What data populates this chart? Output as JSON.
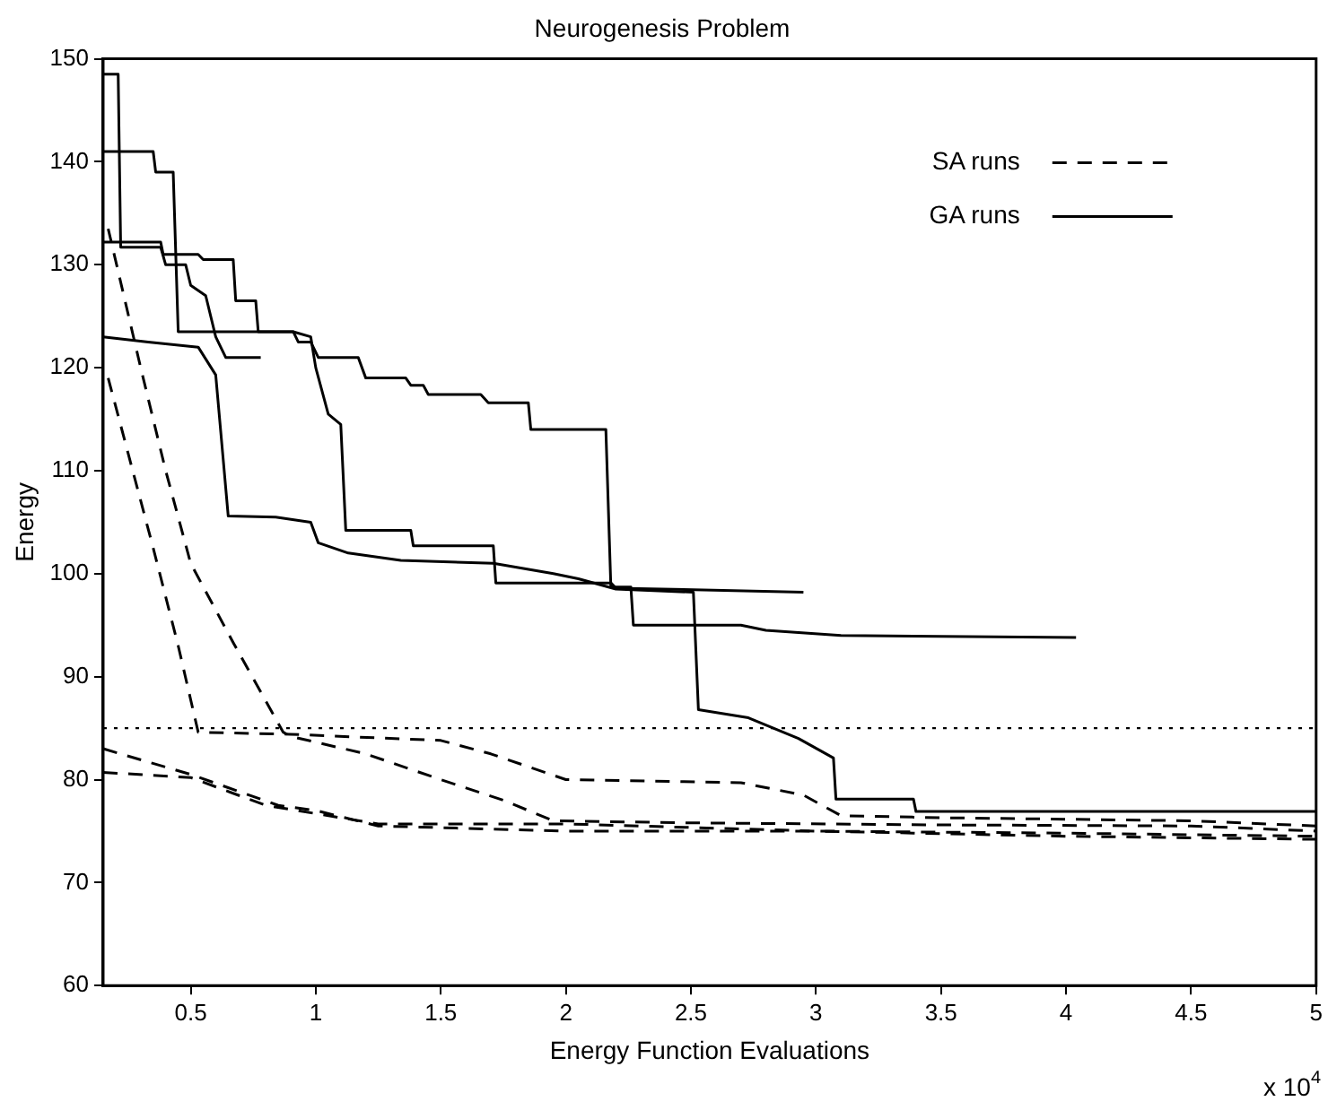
{
  "chart_data": {
    "type": "line",
    "title": "Neurogenesis Problem",
    "xlabel": "Energy Function Evaluations",
    "ylabel": "Energy",
    "xlim": [
      0.15,
      5
    ],
    "xticks": [
      0.5,
      1,
      1.5,
      2,
      2.5,
      3,
      3.5,
      4,
      4.5,
      5
    ],
    "ylim": [
      60,
      150
    ],
    "yticks": [
      60,
      70,
      80,
      90,
      100,
      110,
      120,
      130,
      140,
      150
    ],
    "grid": false,
    "legend": "top right",
    "marker": "none",
    "annotations": [
      "x 10$^{4}$"
    ],
    "ref_lines": [
      {
        "axis": "y",
        "value": 85,
        "color": "#000000",
        "line_style": "dotted"
      }
    ],
    "series": [
      {
        "name": "SA runs",
        "color": "#000000",
        "line_style": "dashed",
        "x": [
          0.17,
          0.3,
          0.4,
          0.5,
          0.67,
          0.87,
          0.9,
          1.2,
          1.5,
          1.75,
          1.95,
          2.5,
          3.5,
          4.5,
          5
        ],
        "values": [
          133.5,
          120,
          110,
          101,
          93.3,
          84.6,
          84.2,
          82.5,
          80,
          78,
          76,
          75.8,
          75.6,
          75.5,
          75
        ]
      },
      {
        "color": "#000000",
        "line_style": "dashed",
        "x": [
          0.17,
          0.35,
          0.45,
          0.53,
          0.9,
          1.5,
          1.7,
          2,
          2.7,
          2.95,
          3.1,
          3.5,
          4.5,
          5
        ],
        "values": [
          119,
          102.5,
          93,
          84.6,
          84.4,
          83.8,
          82.5,
          80,
          79.7,
          78.5,
          76.5,
          76.3,
          76,
          75.5
        ]
      },
      {
        "color": "#000000",
        "line_style": "dashed",
        "x": [
          0.15,
          0.5,
          0.85,
          1,
          1.25,
          2,
          3,
          4,
          5
        ],
        "values": [
          83,
          80.5,
          77.5,
          77,
          75.5,
          75,
          75,
          74.8,
          74.5
        ]
      },
      {
        "color": "#000000",
        "line_style": "dashed",
        "x": [
          0.15,
          0.5,
          0.8,
          1.25,
          2,
          3,
          4,
          5
        ],
        "values": [
          80.7,
          80.2,
          77.5,
          75.7,
          75.7,
          75,
          74.5,
          74.2
        ]
      },
      {
        "name": "GA runs",
        "color": "#000000",
        "line_style": "solid",
        "x": [
          0.15,
          0.21,
          0.22,
          0.38,
          0.4,
          0.48,
          0.5,
          0.56,
          0.6,
          0.64,
          0.78
        ],
        "values": [
          148.5,
          148.5,
          131.7,
          131.7,
          130,
          130,
          128,
          127,
          123,
          121,
          121
        ]
      },
      {
        "color": "#000000",
        "line_style": "solid",
        "x": [
          0.15,
          0.35,
          0.36,
          0.43,
          0.45,
          0.91,
          0.98,
          1,
          1.05,
          1.1,
          1.12,
          1.38,
          1.39,
          1.71,
          1.72,
          2.18,
          2.2,
          2.95
        ],
        "values": [
          141,
          141,
          139,
          139,
          123.5,
          123.5,
          123,
          120,
          115.5,
          114.5,
          104.2,
          104.2,
          102.7,
          102.7,
          99.1,
          99.1,
          98.6,
          98.2
        ]
      },
      {
        "color": "#000000",
        "line_style": "solid",
        "x": [
          0.15,
          0.38,
          0.39,
          0.53,
          0.55,
          0.67,
          0.68,
          0.76,
          0.77,
          0.91,
          0.93,
          0.98,
          1.01,
          1.17,
          1.2,
          1.36,
          1.38,
          1.43,
          1.45,
          1.66,
          1.69,
          1.85,
          1.86,
          2.16,
          2.18,
          2.26,
          2.27,
          2.7,
          2.8,
          3.1,
          4.04
        ],
        "values": [
          132.2,
          132.2,
          131,
          131,
          130.5,
          130.5,
          126.5,
          126.5,
          123.5,
          123.5,
          122.5,
          122.5,
          121,
          121,
          119,
          119,
          118.3,
          118.3,
          117.4,
          117.4,
          116.6,
          116.6,
          114,
          114,
          98.7,
          98.7,
          95,
          95,
          94.5,
          94,
          93.8
        ]
      },
      {
        "color": "#000000",
        "line_style": "solid",
        "x": [
          0.15,
          0.33,
          0.53,
          0.6,
          0.65,
          0.84,
          0.98,
          1.01,
          1.13,
          1.34,
          1.71,
          1.95,
          2.05,
          2.2,
          2.51,
          2.53,
          2.73,
          2.83,
          2.93,
          3.07,
          3.08,
          3.39,
          3.4,
          5
        ],
        "values": [
          123,
          122.5,
          122,
          119.3,
          105.6,
          105.5,
          105,
          103,
          102,
          101.3,
          101,
          100,
          99.5,
          98.5,
          98.2,
          86.8,
          86,
          85,
          84,
          82.1,
          78.1,
          78.1,
          76.9,
          76.9
        ]
      }
    ]
  }
}
